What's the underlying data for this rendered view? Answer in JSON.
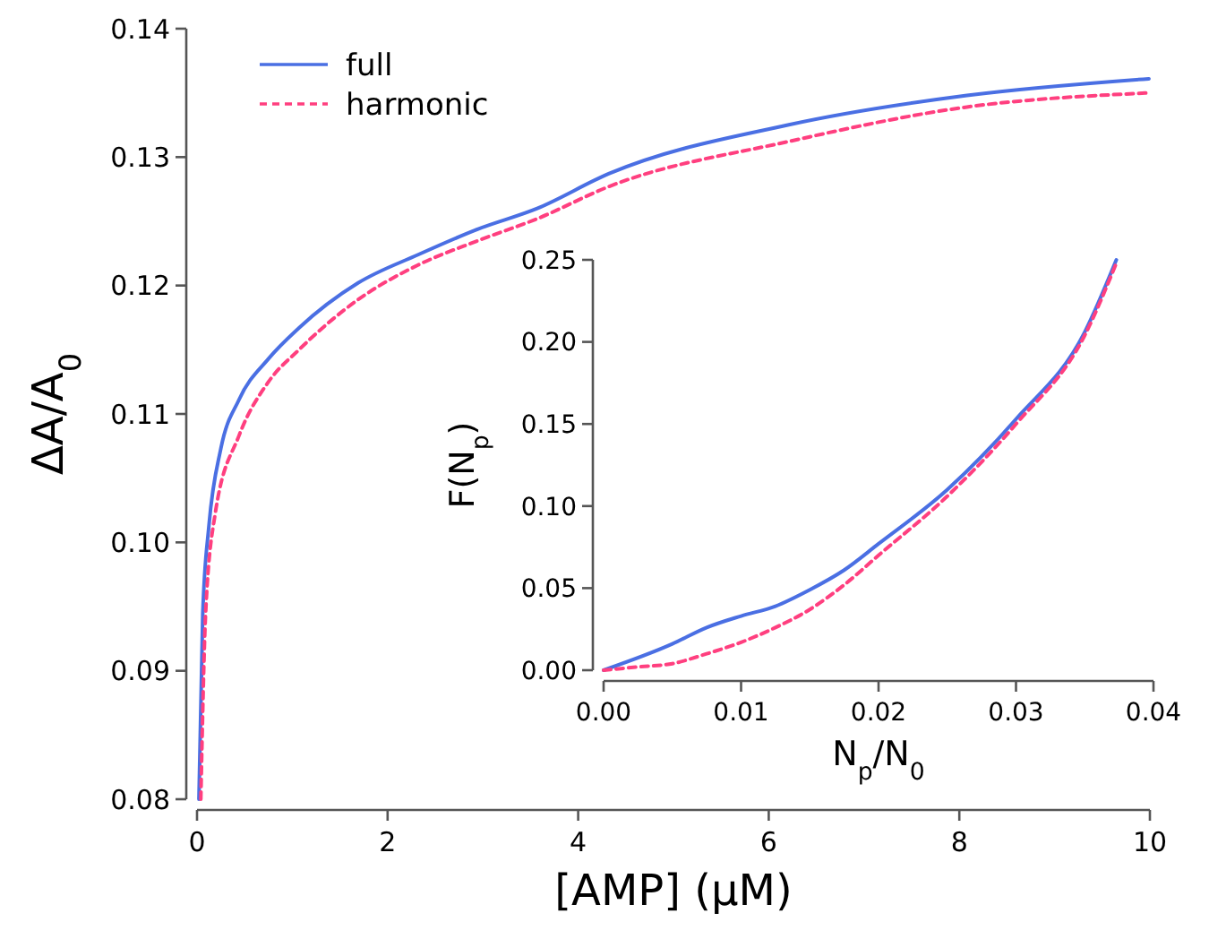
{
  "chart_data": [
    {
      "type": "line",
      "xlabel": "[AMP] (μM)",
      "ylabel": "ΔA/A$_{0}$",
      "xlim": [
        0,
        10
      ],
      "ylim": [
        0.08,
        0.14
      ],
      "xticks": [
        0,
        2,
        4,
        6,
        8,
        10
      ],
      "yticks": [
        0.08,
        0.09,
        {
          "value": 0.1,
          "label": "0.10"
        },
        0.11,
        0.12,
        0.13,
        0.14
      ],
      "legend": "top left",
      "grid": false,
      "series": [
        {
          "name": "full",
          "color": "#4a6fe3",
          "line_style": "solid",
          "x": [
            0.02,
            0.06,
            0.125,
            0.25,
            0.44,
            0.75,
            1.07,
            1.69,
            2.32,
            2.95,
            3.57,
            4.32,
            6.2,
            8.08,
            9.99
          ],
          "values": [
            0.08,
            0.0944,
            0.1013,
            0.1073,
            0.1111,
            0.1143,
            0.1167,
            0.1202,
            0.1224,
            0.1244,
            0.126,
            0.1287,
            0.1325,
            0.1348,
            0.1361
          ]
        },
        {
          "name": "harmonic",
          "color": "#ff3f7f",
          "line_style": "dashed",
          "x": [
            0.04,
            0.09,
            0.19,
            0.44,
            0.75,
            1.07,
            1.69,
            2.32,
            2.95,
            3.57,
            4.32,
            6.2,
            8.08,
            9.99
          ],
          "values": [
            0.08,
            0.0944,
            0.1022,
            0.1083,
            0.1125,
            0.115,
            0.1189,
            0.1216,
            0.1235,
            0.1252,
            0.1277,
            0.1312,
            0.1339,
            0.135
          ]
        }
      ]
    },
    {
      "type": "line",
      "xlabel": "N$_{p}$/N$_{0}$",
      "ylabel": "F(N$_{p}$)",
      "xlim": [
        0,
        0.04
      ],
      "ylim": [
        0,
        0.25
      ],
      "xticks": [
        {
          "value": 0,
          "label": "0.00"
        },
        {
          "value": 0.01,
          "label": "0.01"
        },
        {
          "value": 0.02,
          "label": "0.02"
        },
        {
          "value": 0.03,
          "label": "0.03"
        },
        {
          "value": 0.04,
          "label": "0.04"
        }
      ],
      "yticks": [
        {
          "value": 0,
          "label": "0.00"
        },
        {
          "value": 0.05,
          "label": "0.05"
        },
        {
          "value": 0.1,
          "label": "0.10"
        },
        {
          "value": 0.15,
          "label": "0.15"
        },
        {
          "value": 0.2,
          "label": "0.20"
        },
        {
          "value": 0.25,
          "label": "0.25"
        }
      ],
      "legend": false,
      "grid": false,
      "series": [
        {
          "color": "#4a6fe3",
          "line_style": "solid",
          "x": [
            0,
            0.005,
            0.0075,
            0.01,
            0.0125,
            0.015,
            0.0175,
            0.02,
            0.025,
            0.03,
            0.035,
            0.0373
          ],
          "values": [
            0,
            0.016,
            0.026,
            0.033,
            0.039,
            0.049,
            0.061,
            0.077,
            0.11,
            0.153,
            0.206,
            0.25
          ]
        },
        {
          "color": "#ff3f7f",
          "line_style": "dashed",
          "x": [
            0,
            0.0025,
            0.005,
            0.0075,
            0.01,
            0.0125,
            0.015,
            0.0175,
            0.02,
            0.025,
            0.03,
            0.035,
            0.0373
          ],
          "values": [
            0,
            0.002,
            0.004,
            0.01,
            0.017,
            0.026,
            0.037,
            0.052,
            0.07,
            0.106,
            0.15,
            0.204,
            0.248
          ]
        }
      ]
    }
  ]
}
